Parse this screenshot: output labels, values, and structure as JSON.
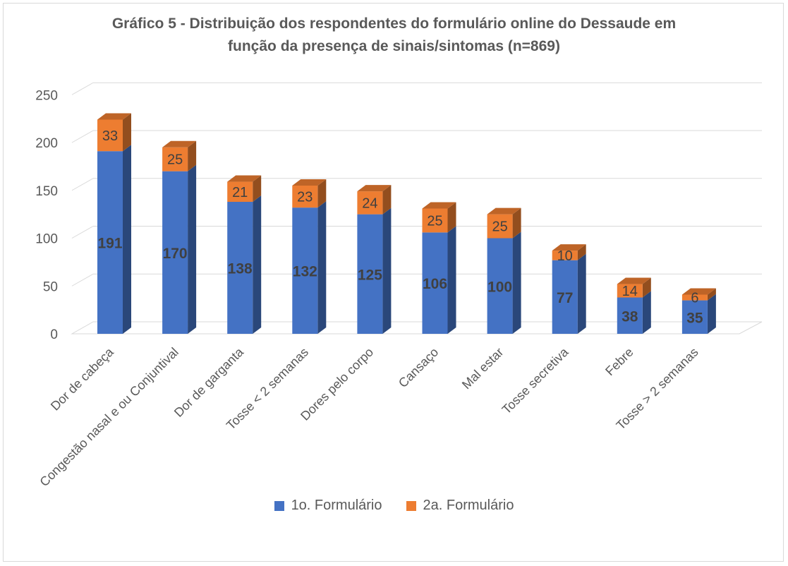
{
  "chart_data": {
    "type": "bar",
    "stacked": true,
    "three_d": true,
    "title_lines": [
      "Gráfico 5 - Distribuição dos respondentes do formulário online do Dessaude em",
      "função da presença de sinais/sintomas (n=869)"
    ],
    "categories": [
      "Dor de cabeça",
      "Congestão nasal e ou Conjuntival",
      "Dor de garganta",
      "Tosse < 2 semanas",
      "Dores pelo corpo",
      "Cansaço",
      "Mal estar",
      "Tosse secretiva",
      "Febre",
      "Tosse > 2 semanas"
    ],
    "series": [
      {
        "name": "1o. Formulário",
        "color": "#4472c4",
        "values": [
          191,
          170,
          138,
          132,
          125,
          106,
          100,
          77,
          38,
          35
        ]
      },
      {
        "name": "2a. Formulário",
        "color": "#ed7d31",
        "values": [
          33,
          25,
          21,
          23,
          24,
          25,
          25,
          10,
          14,
          6
        ]
      }
    ],
    "yticks": [
      "0",
      "50",
      "100",
      "150",
      "200",
      "250"
    ],
    "ylim": [
      0,
      250
    ],
    "grid": true,
    "legend_position": "bottom",
    "data_labels": true
  }
}
